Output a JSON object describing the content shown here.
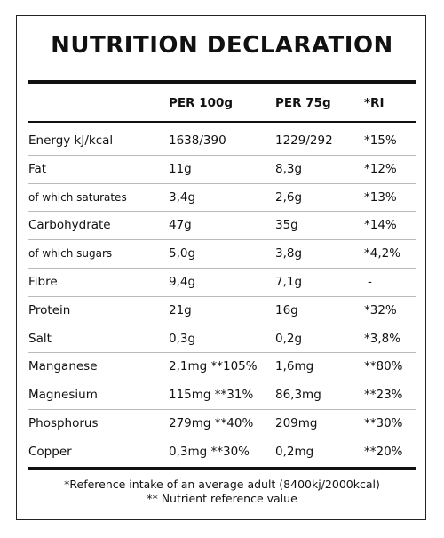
{
  "title": "NUTRITION DECLARATION",
  "header": [
    "PER 100g",
    "PER 75g",
    "*RI"
  ],
  "rows": [
    [
      "Energy kJ/kcal",
      "1638/390",
      "1229/292",
      "*15%"
    ],
    [
      "Fat",
      "11g",
      "8,3g",
      "*12%"
    ],
    [
      "of which saturates",
      "3,4g",
      "2,6g",
      "*13%"
    ],
    [
      "Carbohydrate",
      "47g",
      "35g",
      "*14%"
    ],
    [
      "of which sugars",
      "5,0g",
      "3,8g",
      "*4,2%"
    ],
    [
      "Fibre",
      "9,4g",
      "7,1g",
      "-"
    ],
    [
      "Protein",
      "21g",
      "16g",
      "*32%"
    ],
    [
      "Salt",
      "0,3g",
      "0,2g",
      "*3,8%"
    ],
    [
      "Manganese",
      "2,1mg **105%",
      "1,6mg",
      "**80%"
    ],
    [
      "Magnesium",
      "115mg **31%",
      "86,3mg",
      "**23%"
    ],
    [
      "Phosphorus",
      "279mg **40%",
      "209mg",
      "**30%"
    ],
    [
      "Copper",
      "0,3mg **30%",
      "0,2mg",
      "**20%"
    ]
  ],
  "footnotes": [
    "*Reference intake of an average adult (8400kj/2000kcal)",
    "** Nutrient reference value"
  ]
}
